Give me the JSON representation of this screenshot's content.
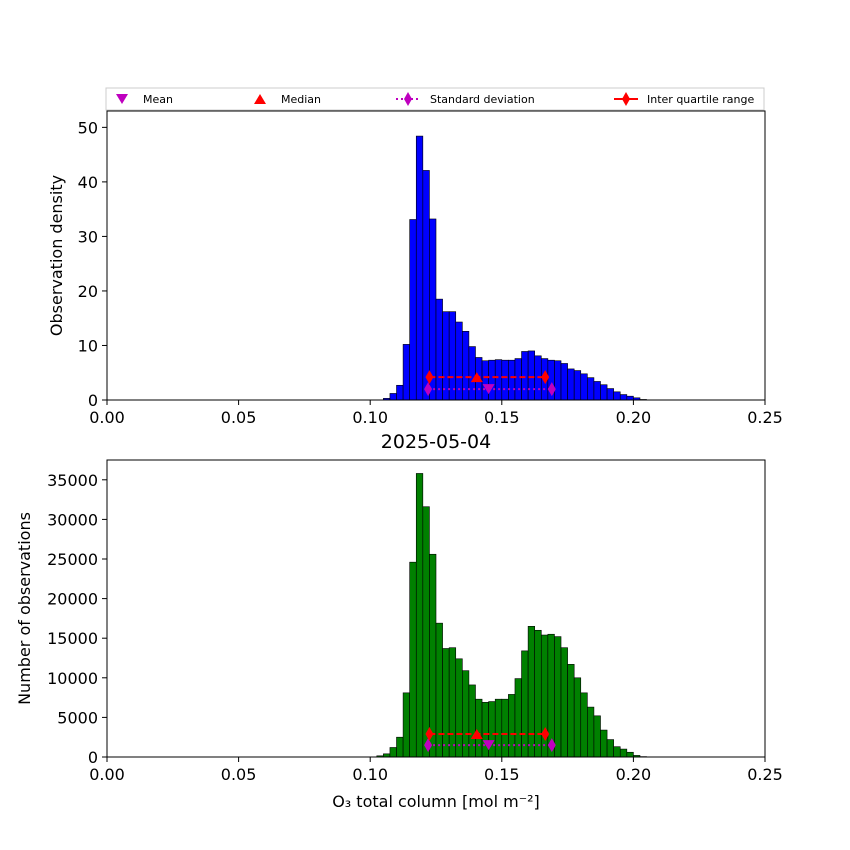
{
  "chart_data": [
    {
      "type": "bar",
      "panel": "top",
      "ylabel": "Observation density",
      "xlabel": "",
      "title": "",
      "xlim": [
        0,
        0.25
      ],
      "ylim": [
        0,
        53
      ],
      "xticks": [
        "0.00",
        "0.05",
        "0.10",
        "0.15",
        "0.20",
        "0.25"
      ],
      "yticks": [
        "0",
        "10",
        "20",
        "30",
        "40",
        "50"
      ],
      "bar_color": "#0000ff",
      "bin_width": 0.0025,
      "bins_start": [
        0.105,
        0.1075,
        0.11,
        0.1125,
        0.115,
        0.1175,
        0.12,
        0.1225,
        0.125,
        0.1275,
        0.13,
        0.1325,
        0.135,
        0.1375,
        0.14,
        0.1425,
        0.145,
        0.1475,
        0.15,
        0.1525,
        0.155,
        0.1575,
        0.16,
        0.1625,
        0.165,
        0.1675,
        0.17,
        0.1725,
        0.175,
        0.1775,
        0.18,
        0.1825,
        0.185,
        0.1875,
        0.19,
        0.1925,
        0.195,
        0.1975,
        0.2,
        0.2025
      ],
      "values": [
        0.3,
        1.2,
        2.7,
        10.2,
        33.1,
        48.4,
        42.1,
        33.2,
        18.5,
        16.2,
        16.2,
        14.3,
        12.6,
        9.8,
        7.8,
        7.2,
        7.3,
        7.4,
        7.3,
        7.3,
        7.6,
        8.9,
        9.0,
        8.1,
        7.6,
        7.3,
        7.2,
        6.7,
        5.7,
        5.4,
        4.8,
        4.1,
        3.4,
        2.8,
        2.1,
        1.5,
        1.0,
        0.7,
        0.4,
        0.1
      ],
      "stats": {
        "mean": {
          "x": 0.145,
          "y": 2.0
        },
        "median": {
          "x": 0.1405,
          "y": 4.2
        },
        "std": {
          "x": [
            0.122,
            0.169
          ],
          "y": 2.0
        },
        "iqr": {
          "x": [
            0.1225,
            0.1665
          ],
          "y": 4.2
        }
      }
    },
    {
      "type": "bar",
      "panel": "bottom",
      "title": "2025-05-04",
      "ylabel": "Number of observations",
      "xlabel": "O₃ total column [mol m⁻²]",
      "xlim": [
        0,
        0.25
      ],
      "ylim": [
        0,
        37500
      ],
      "xticks": [
        "0.00",
        "0.05",
        "0.10",
        "0.15",
        "0.20",
        "0.25"
      ],
      "yticks": [
        "0",
        "5000",
        "10000",
        "15000",
        "20000",
        "25000",
        "30000",
        "35000"
      ],
      "bar_color": "#008000",
      "bin_width": 0.0025,
      "bins_start": [
        0.1025,
        0.105,
        0.1075,
        0.11,
        0.1125,
        0.115,
        0.1175,
        0.12,
        0.1225,
        0.125,
        0.1275,
        0.13,
        0.1325,
        0.135,
        0.1375,
        0.14,
        0.1425,
        0.145,
        0.1475,
        0.15,
        0.1525,
        0.155,
        0.1575,
        0.16,
        0.1625,
        0.165,
        0.1675,
        0.17,
        0.1725,
        0.175,
        0.1775,
        0.18,
        0.1825,
        0.185,
        0.1875,
        0.19,
        0.1925,
        0.195,
        0.1975,
        0.2,
        0.2025
      ],
      "values": [
        150,
        400,
        1200,
        2500,
        8100,
        24600,
        35800,
        31600,
        25600,
        16900,
        13700,
        13800,
        12400,
        10900,
        9100,
        7300,
        6900,
        7000,
        7300,
        7300,
        7900,
        9900,
        13400,
        16500,
        16000,
        15400,
        15500,
        15200,
        13800,
        11700,
        10000,
        8100,
        6300,
        5200,
        3400,
        2200,
        1300,
        1000,
        600,
        200,
        50
      ],
      "stats": {
        "mean": {
          "x": 0.145,
          "y": 1500
        },
        "median": {
          "x": 0.1405,
          "y": 2900
        },
        "std": {
          "x": [
            0.122,
            0.169
          ],
          "y": 1500
        },
        "iqr": {
          "x": [
            0.1225,
            0.1665
          ],
          "y": 2900
        }
      }
    }
  ],
  "legend": {
    "placement": "top",
    "items": [
      {
        "key": "mean",
        "label": "Mean",
        "color": "#bf00bf",
        "marker": "triangle-down"
      },
      {
        "key": "median",
        "label": "Median",
        "color": "#ff0000",
        "marker": "triangle-up"
      },
      {
        "key": "std",
        "label": "Standard deviation",
        "color": "#bf00bf",
        "marker": "diamond",
        "line": "dotted"
      },
      {
        "key": "iqr",
        "label": "Inter quartile range",
        "color": "#ff0000",
        "marker": "diamond",
        "line": "solid"
      }
    ]
  },
  "colors": {
    "mean": "#bf00bf",
    "median": "#ff0000",
    "std": "#bf00bf",
    "iqr": "#ff0000"
  }
}
